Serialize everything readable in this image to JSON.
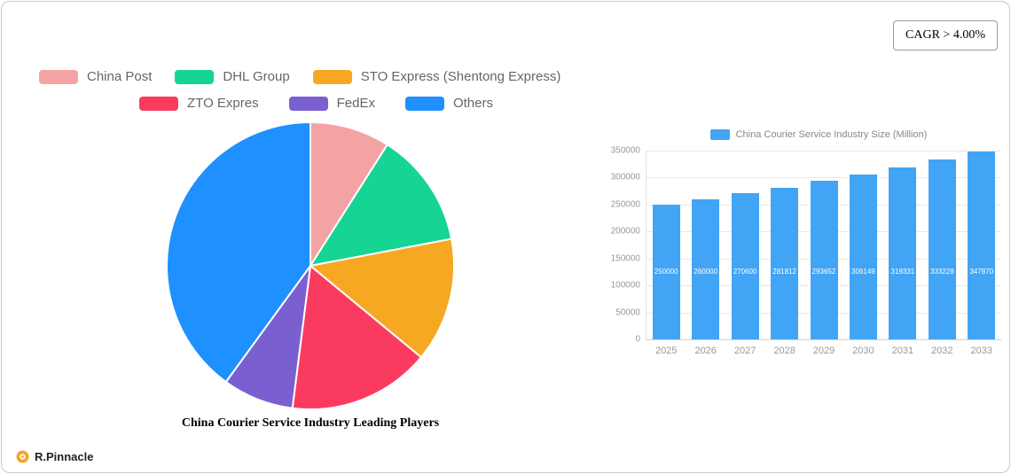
{
  "cagr_label": "CAGR > 4.00%",
  "brand": {
    "name": "R.Pinnacle",
    "icon_color": "#f5a623"
  },
  "chart_data": [
    {
      "type": "pie",
      "title": "China Courier Service Industry Leading Players",
      "legend_position": "top",
      "segments": [
        {
          "label": "China Post",
          "value": 9,
          "color": "#f4a3a5"
        },
        {
          "label": "DHL Group",
          "value": 13,
          "color": "#15d494"
        },
        {
          "label": "STO Express (Shentong Express)",
          "value": 14,
          "color": "#f7a822"
        },
        {
          "label": "ZTO Expres",
          "value": 16,
          "color": "#fa3b5f"
        },
        {
          "label": "FedEx",
          "value": 8,
          "color": "#7a5fd0"
        },
        {
          "label": "Others",
          "value": 40,
          "color": "#1e90ff"
        }
      ]
    },
    {
      "type": "bar",
      "legend": "China Courier Service Industry Size (Million)",
      "categories": [
        "2025",
        "2026",
        "2027",
        "2028",
        "2029",
        "2030",
        "2031",
        "2032",
        "2033"
      ],
      "values": [
        250000,
        260000,
        270600,
        281812,
        293652,
        306149,
        319331,
        333228,
        347870
      ],
      "bar_color": "#42a4f5",
      "ylabel": "",
      "xlabel": "",
      "ylim": [
        0,
        350000
      ],
      "yticks": [
        0,
        50000,
        100000,
        150000,
        200000,
        250000,
        300000,
        350000
      ],
      "grid": true,
      "legend_position": "top"
    }
  ]
}
